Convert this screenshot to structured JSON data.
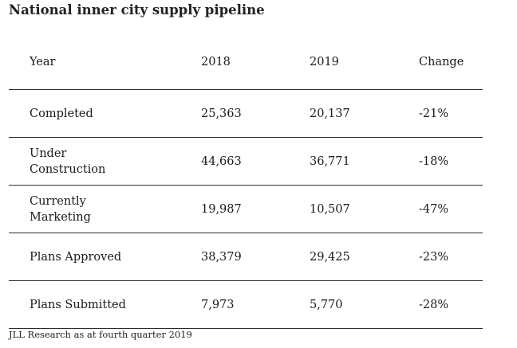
{
  "title": "National inner city supply pipeline",
  "headers": [
    "Year",
    "2018",
    "2019",
    "Change"
  ],
  "rows": [
    [
      "Completed",
      "25,363",
      "20,137",
      "-21%"
    ],
    [
      "Under\nConstruction",
      "44,663",
      "36,771",
      "-18%"
    ],
    [
      "Currently\nMarketing",
      "19,987",
      "10,507",
      "-47%"
    ],
    [
      "Plans Approved",
      "38,379",
      "29,425",
      "-23%"
    ],
    [
      "Plans Submitted",
      "7,973",
      "5,770",
      "-28%"
    ]
  ],
  "source": "JLL Research as at fourth quarter 2019"
}
